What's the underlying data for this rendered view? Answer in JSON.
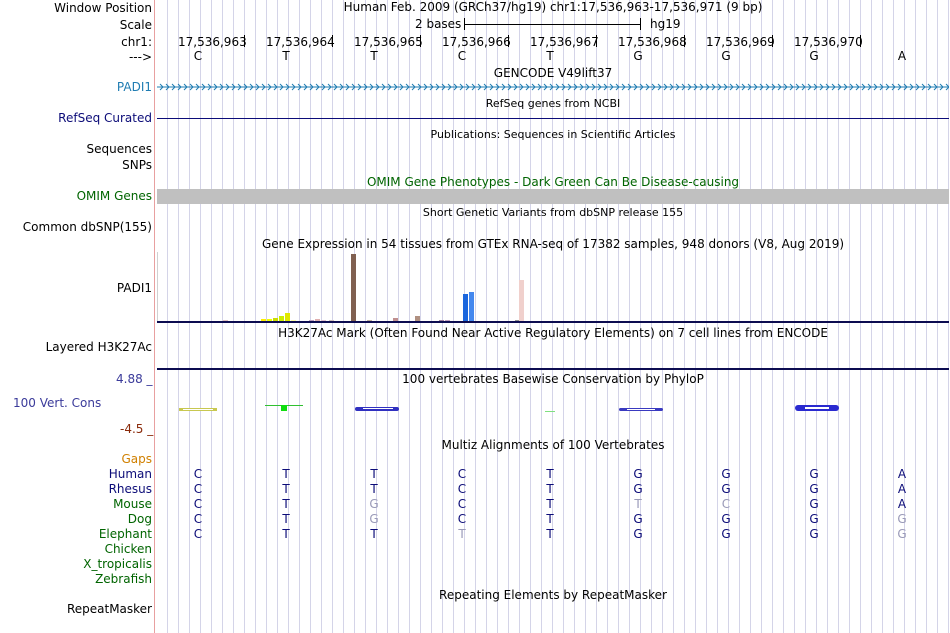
{
  "header": {
    "window_position_label": "Window Position",
    "window_position_text": "Human Feb. 2009 (GRCh37/hg19)   chr1:17,536,963-17,536,971 (9 bp)",
    "scale_label": "Scale",
    "scale_text": "2 bases",
    "scale_assembly": "hg19",
    "chr_label": "chr1:",
    "strand_label": "--->"
  },
  "ruler": {
    "positions": [
      "17,536,963",
      "17,536,964",
      "17,536,965",
      "17,536,966",
      "17,536,967",
      "17,536,968",
      "17,536,969",
      "17,536,970"
    ],
    "bases": [
      "C",
      "T",
      "T",
      "C",
      "T",
      "G",
      "G",
      "G",
      "A"
    ]
  },
  "tracks": {
    "gencode": {
      "title": "GENCODE V49lift37",
      "label": "PADI1",
      "color": "#1f7cb2"
    },
    "refseq": {
      "title": "RefSeq genes from NCBI",
      "label": "RefSeq Curated",
      "color": "#0c0c78"
    },
    "publications": {
      "title": "Publications: Sequences in Scientific Articles",
      "label1": "Sequences",
      "label2": "SNPs"
    },
    "omim": {
      "title": "OMIM Gene Phenotypes - Dark Green Can Be Disease-causing",
      "label": "OMIM Genes",
      "color": "#006400"
    },
    "dbsnp": {
      "title": "Short Genetic Variants from dbSNP release 155",
      "label": "Common dbSNP(155)"
    },
    "gtex": {
      "title": "Gene Expression in 54 tissues from GTEx RNA-seq of 17382 samples, 948 donors (V8, Aug 2019)",
      "label": "PADI1"
    },
    "h3k27ac": {
      "title": "H3K27Ac Mark (Often Found Near Active Regulatory Elements) on 7 cell lines from ENCODE",
      "label": "Layered H3K27Ac"
    },
    "phylop": {
      "title": "100 vertebrates Basewise Conservation by PhyloP",
      "label": "100 Vert. Cons",
      "ymax": "4.88 _",
      "ymin": "-4.5 _"
    },
    "multiz": {
      "title": "Multiz Alignments of 100 Vertebrates",
      "gaps_label": "Gaps",
      "species": [
        {
          "name": "Human",
          "bases": [
            "C",
            "T",
            "T",
            "C",
            "T",
            "G",
            "G",
            "G",
            "A"
          ],
          "faded": [
            false,
            false,
            false,
            false,
            false,
            false,
            false,
            false,
            false
          ]
        },
        {
          "name": "Rhesus",
          "bases": [
            "C",
            "T",
            "T",
            "C",
            "T",
            "G",
            "G",
            "G",
            "A"
          ],
          "faded": [
            false,
            false,
            false,
            false,
            false,
            false,
            false,
            false,
            false
          ]
        },
        {
          "name": "Mouse",
          "bases": [
            "C",
            "T",
            "G",
            "C",
            "T",
            "T",
            "C",
            "G",
            "A"
          ],
          "faded": [
            false,
            false,
            true,
            false,
            false,
            true,
            true,
            false,
            false
          ]
        },
        {
          "name": "Dog",
          "bases": [
            "C",
            "T",
            "G",
            "C",
            "T",
            "G",
            "G",
            "G",
            "G"
          ],
          "faded": [
            false,
            false,
            true,
            false,
            false,
            false,
            false,
            false,
            true
          ]
        },
        {
          "name": "Elephant",
          "bases": [
            "C",
            "T",
            "T",
            "T",
            "T",
            "G",
            "G",
            "G",
            "G"
          ],
          "faded": [
            false,
            false,
            false,
            true,
            false,
            false,
            false,
            false,
            true
          ]
        },
        {
          "name": "Chicken",
          "bases": [],
          "faded": []
        },
        {
          "name": "X_tropicalis",
          "bases": [],
          "faded": []
        },
        {
          "name": "Zebrafish",
          "bases": [],
          "faded": []
        }
      ]
    },
    "repeatmasker": {
      "title": "Repeating Elements by RepeatMasker",
      "label": "RepeatMasker"
    }
  },
  "colors": {
    "species_name": "#0c0c78",
    "species_name_green": "#006400",
    "gaps": "#d08000",
    "phylop_title": "#3a3a9a",
    "phylop_ymax": "#3a3a9a",
    "phylop_ymin": "#8a2a0a",
    "faded_base": "#9a9ab8"
  }
}
